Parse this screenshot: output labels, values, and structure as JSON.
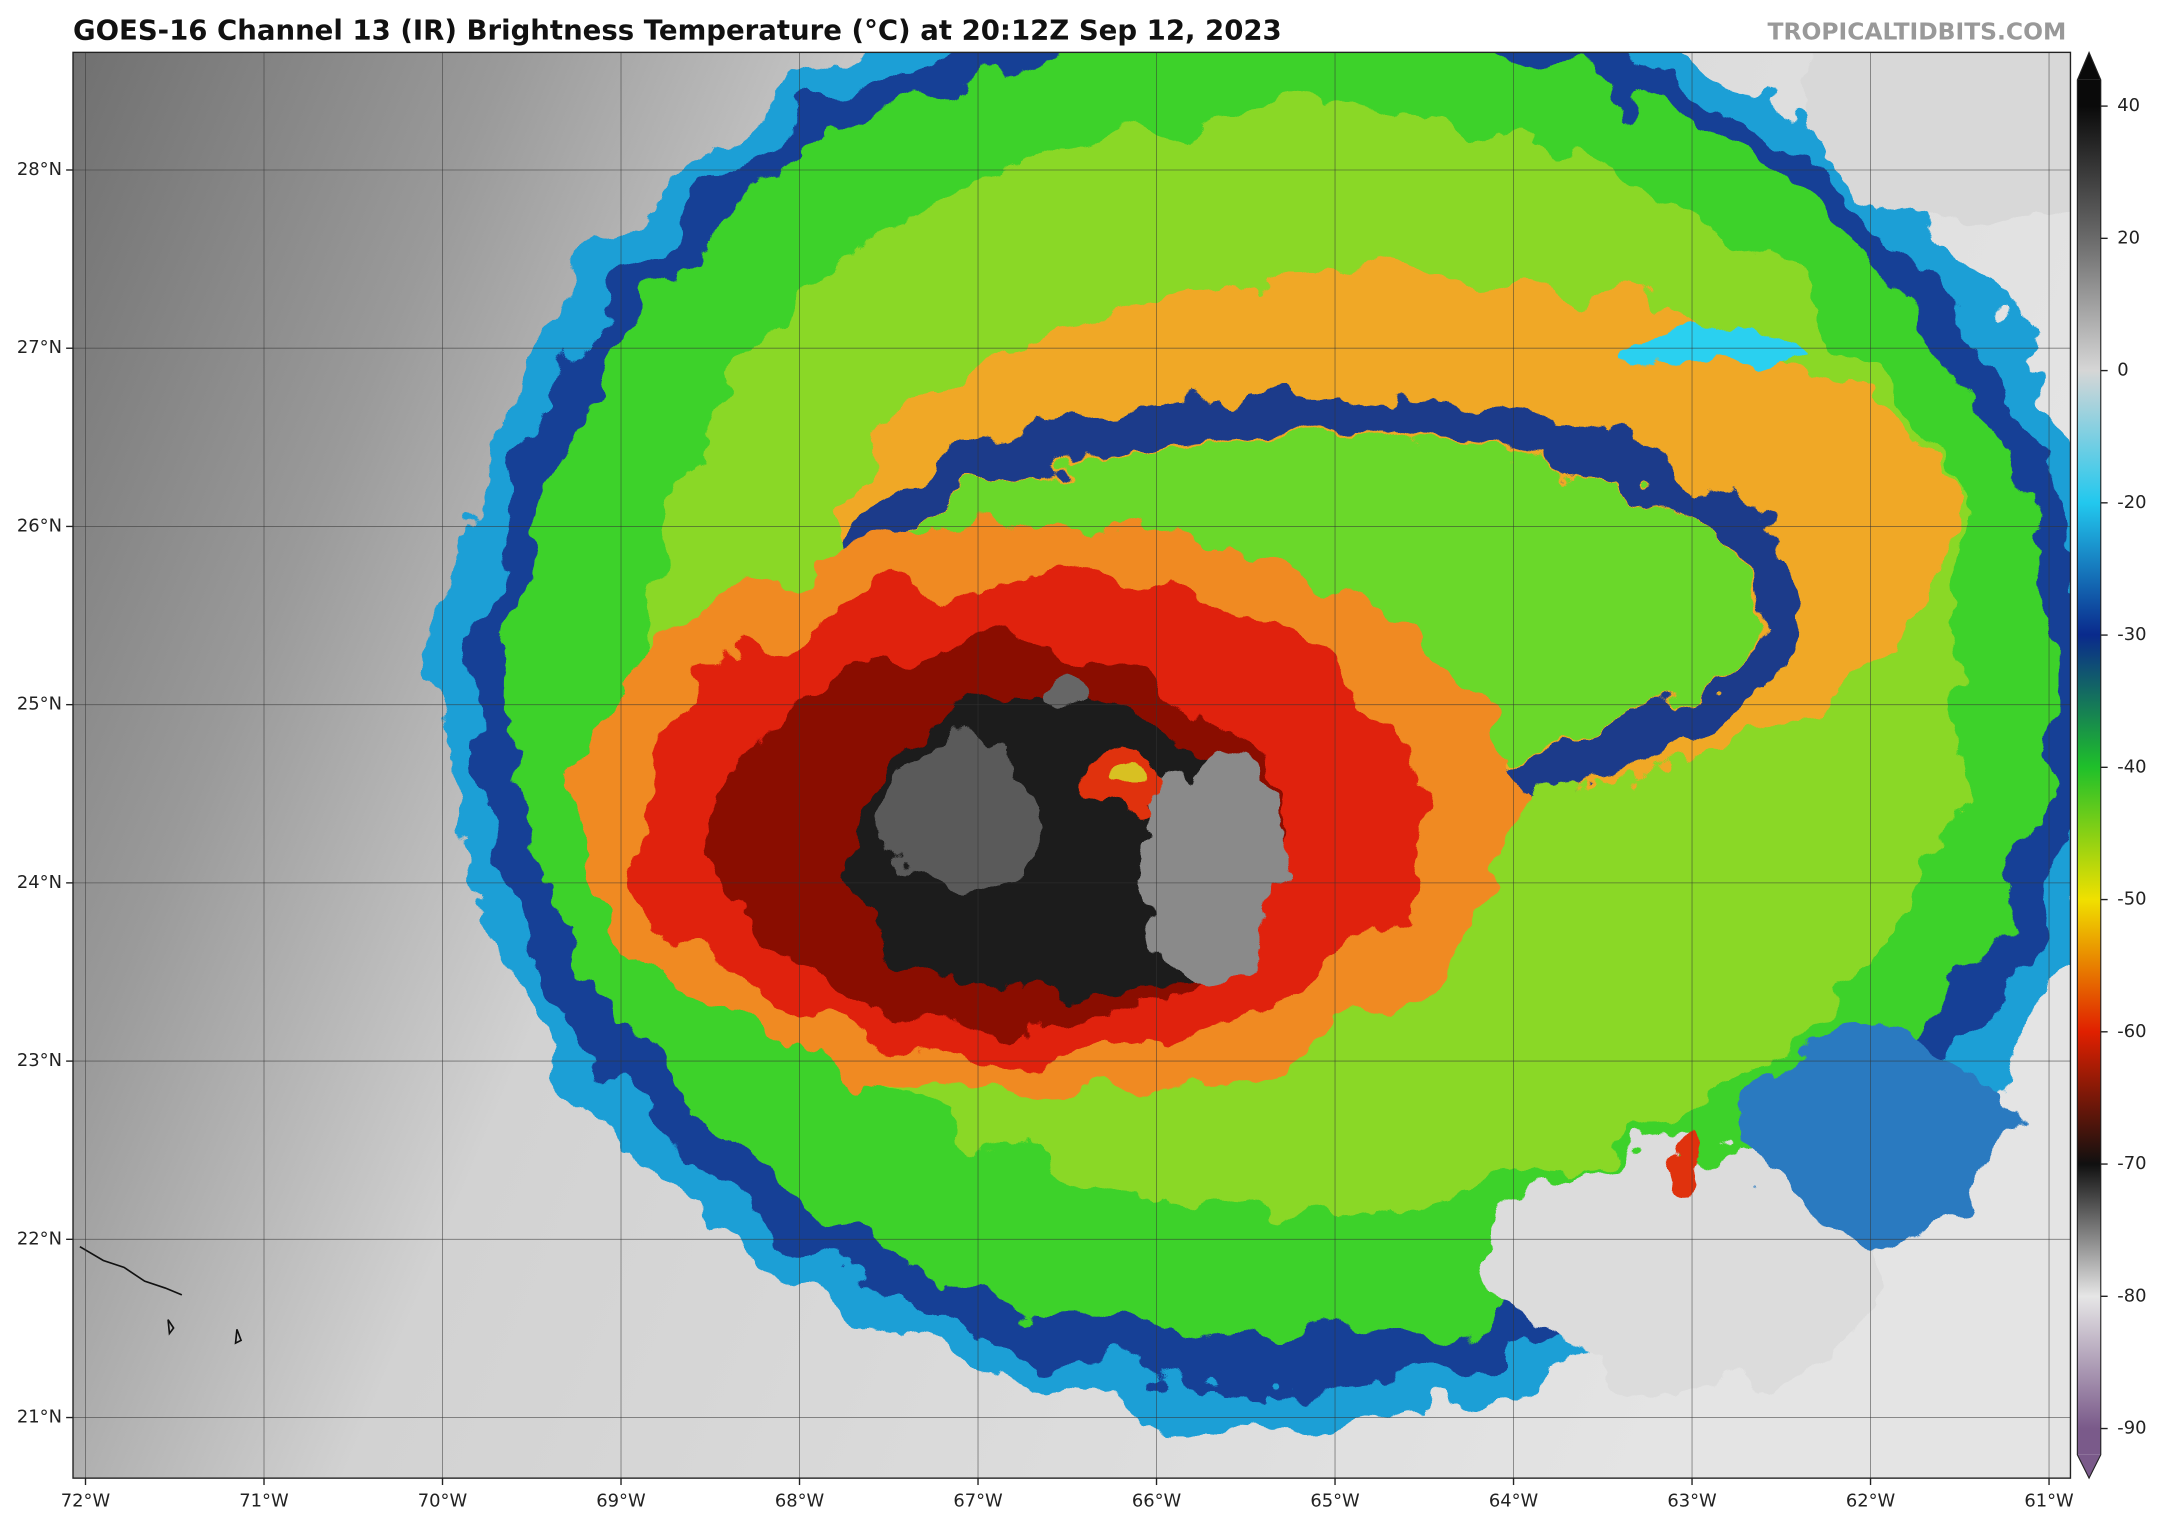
{
  "header": {
    "title": "GOES-16 Channel 13 (IR) Brightness Temperature (°C) at 20:12Z Sep 12, 2023",
    "credit": "TROPICALTIDBITS.COM"
  },
  "map": {
    "xlim": [
      -72.07,
      -60.88
    ],
    "ylim": [
      20.66,
      28.66
    ],
    "grid": true,
    "xticks": [
      {
        "value": -72,
        "label": "72°W"
      },
      {
        "value": -71,
        "label": "71°W"
      },
      {
        "value": -70,
        "label": "70°W"
      },
      {
        "value": -69,
        "label": "69°W"
      },
      {
        "value": -68,
        "label": "68°W"
      },
      {
        "value": -67,
        "label": "67°W"
      },
      {
        "value": -66,
        "label": "66°W"
      },
      {
        "value": -65,
        "label": "65°W"
      },
      {
        "value": -64,
        "label": "64°W"
      },
      {
        "value": -63,
        "label": "63°W"
      },
      {
        "value": -62,
        "label": "62°W"
      },
      {
        "value": -61,
        "label": "61°W"
      }
    ],
    "yticks": [
      {
        "value": 21,
        "label": "21°N"
      },
      {
        "value": 22,
        "label": "22°N"
      },
      {
        "value": 23,
        "label": "23°N"
      },
      {
        "value": 24,
        "label": "24°N"
      },
      {
        "value": 25,
        "label": "25°N"
      },
      {
        "value": 26,
        "label": "26°N"
      },
      {
        "value": 27,
        "label": "27°N"
      },
      {
        "value": 28,
        "label": "28°N"
      }
    ]
  },
  "colorbar": {
    "ticks": [
      40,
      20,
      0,
      -20,
      -30,
      -40,
      -50,
      -60,
      -70,
      -80,
      -90
    ],
    "colors": [
      "#0a0a0a",
      "#6a6a6a",
      "#d6d6d6",
      "#22c8ee",
      "#0a2a8c",
      "#1fc02a",
      "#f0e000",
      "#e02000",
      "#101010",
      "#e6e6e6",
      "#7a5a8a"
    ]
  }
}
